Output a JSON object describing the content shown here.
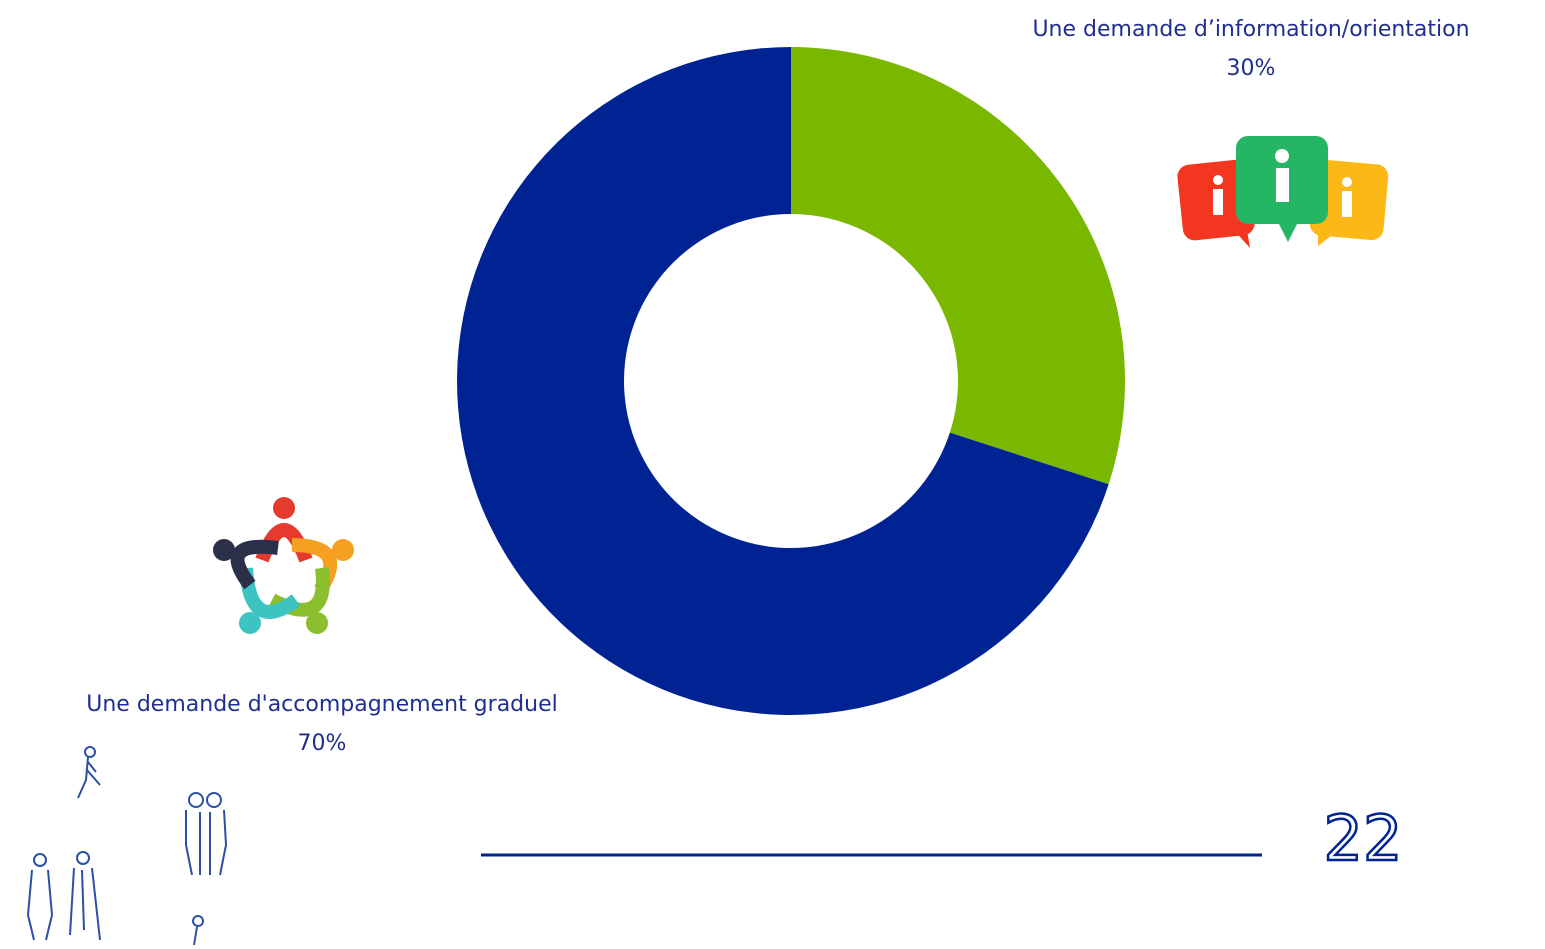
{
  "chart_data": {
    "type": "pie",
    "donut": true,
    "categories": [
      "Une demande d’information/orientation",
      "Une demande d'accompagnement graduel"
    ],
    "values": [
      30,
      70
    ],
    "value_labels": [
      "30%",
      "70%"
    ],
    "colors": [
      "#7ab800",
      "#002394"
    ]
  },
  "page_number": 22
}
